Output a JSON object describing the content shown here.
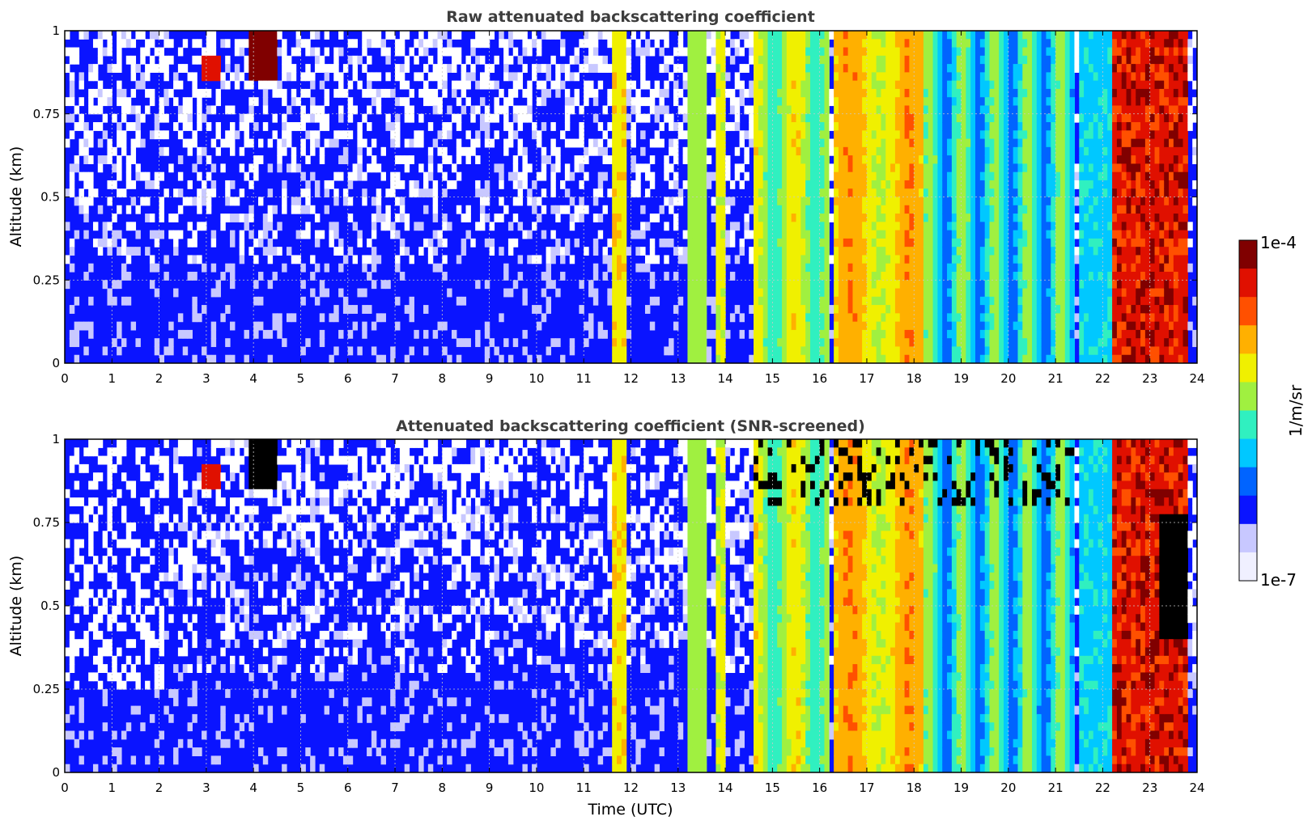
{
  "colorbar": {
    "max_label": "1e-4",
    "min_label": "1e-7",
    "label": "1/m/sr",
    "colormap": [
      "#f0f0ff",
      "#c8c8ff",
      "#0a14ff",
      "#0064ff",
      "#00c8ff",
      "#30f0c0",
      "#a0f040",
      "#f0f000",
      "#ffb000",
      "#ff5000",
      "#e01000",
      "#800000"
    ],
    "scale": "log"
  },
  "chart_data": [
    {
      "type": "heatmap",
      "title": "Raw attenuated backscattering coefficient",
      "xlabel": "",
      "ylabel": "Altitude (km)",
      "xlim": [
        0,
        24
      ],
      "ylim": [
        0,
        1
      ],
      "xticks": [
        "0",
        "1",
        "2",
        "3",
        "4",
        "5",
        "6",
        "7",
        "8",
        "9",
        "10",
        "11",
        "12",
        "13",
        "14",
        "15",
        "16",
        "17",
        "18",
        "19",
        "20",
        "21",
        "22",
        "23",
        "24"
      ],
      "yticks": [
        "0",
        "0.25",
        "0.5",
        "0.75",
        "1"
      ],
      "grid": true,
      "units": "1/m/sr",
      "features": [
        {
          "x": [
            0,
            11.6
          ],
          "y": [
            0,
            1
          ],
          "level": "~1e-7 background noise"
        },
        {
          "x": [
            3.9,
            4.5
          ],
          "y": [
            0.85,
            1
          ],
          "level": "~1e-4 cloud"
        },
        {
          "x": [
            11.6,
            11.9
          ],
          "y": [
            0,
            1
          ],
          "level": "~3e-6"
        },
        {
          "x": [
            13.2,
            14.6
          ],
          "y": [
            0,
            1
          ],
          "level": "~1e-6 to 3e-6 streaks"
        },
        {
          "x": [
            14.6,
            21.4
          ],
          "y": [
            0,
            1
          ],
          "level": "~1e-6 to 3e-5 precipitation"
        },
        {
          "x": [
            22.2,
            23.8
          ],
          "y": [
            0,
            1
          ],
          "level": "~3e-5 to 1e-4"
        }
      ]
    },
    {
      "type": "heatmap",
      "title": "Attenuated backscattering coefficient (SNR-screened)",
      "xlabel": "Time (UTC)",
      "ylabel": "Altitude (km)",
      "xlim": [
        0,
        24
      ],
      "ylim": [
        0,
        1
      ],
      "xticks": [
        "0",
        "1",
        "2",
        "3",
        "4",
        "5",
        "6",
        "7",
        "8",
        "9",
        "10",
        "11",
        "12",
        "13",
        "14",
        "15",
        "16",
        "17",
        "18",
        "19",
        "20",
        "21",
        "22",
        "23",
        "24"
      ],
      "yticks": [
        "0",
        "0.25",
        "0.5",
        "0.75",
        "1"
      ],
      "grid": true,
      "units": "1/m/sr",
      "features": [
        {
          "x": [
            0,
            2.1
          ],
          "y": [
            0.25,
            1
          ],
          "level": "screened (white)"
        },
        {
          "x": [
            3.9,
            4.5
          ],
          "y": [
            0.85,
            1
          ],
          "level": "> 1e-4 (black)"
        },
        {
          "x": [
            14.6,
            21.4
          ],
          "y": [
            0,
            1
          ],
          "level": "~1e-6 to 3e-5"
        },
        {
          "x": [
            23.2,
            23.8
          ],
          "y": [
            0.4,
            0.75
          ],
          "level": "> 1e-4 (black)"
        }
      ]
    }
  ]
}
